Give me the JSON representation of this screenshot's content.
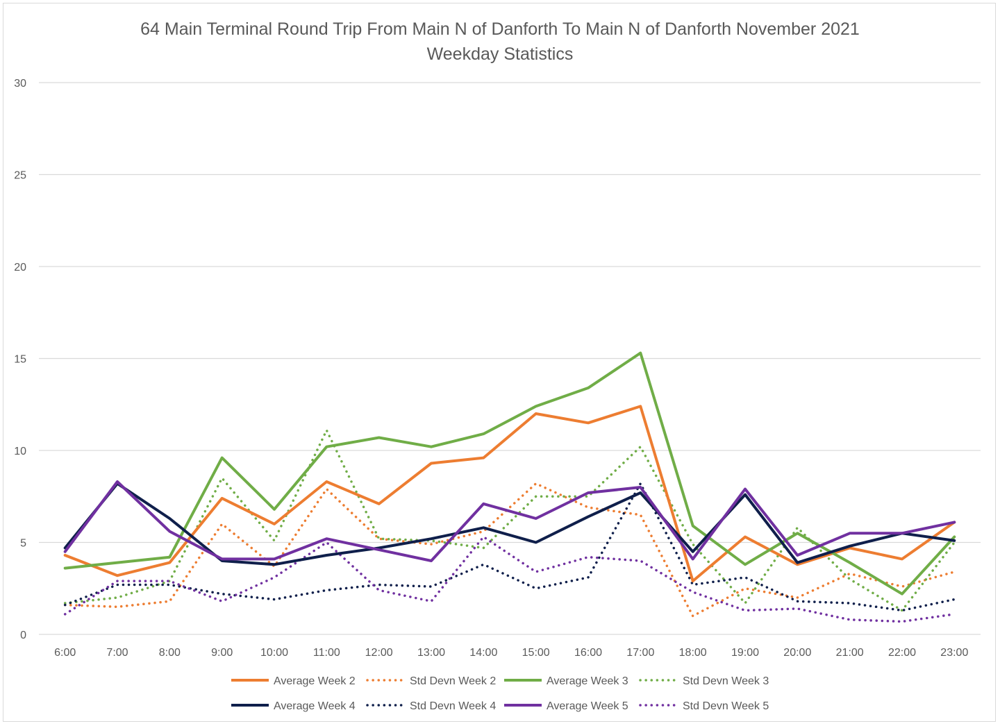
{
  "chart_data": {
    "type": "line",
    "title": "64 Main Terminal Round Trip From Main N of Danforth To Main N of Danforth November 2021",
    "subtitle": "Weekday Statistics",
    "xlabel": "",
    "ylabel": "",
    "ylim": [
      0,
      30
    ],
    "yticks": [
      0,
      5,
      10,
      15,
      20,
      25,
      30
    ],
    "grid": "horizontal",
    "legend_position": "bottom",
    "categories": [
      "6:00",
      "7:00",
      "8:00",
      "9:00",
      "10:00",
      "11:00",
      "12:00",
      "13:00",
      "14:00",
      "15:00",
      "16:00",
      "17:00",
      "18:00",
      "19:00",
      "20:00",
      "21:00",
      "22:00",
      "23:00"
    ],
    "series": [
      {
        "name": "Average Week 2",
        "color": "#ed7d31",
        "style": "solid",
        "values": [
          4.3,
          3.2,
          3.9,
          7.4,
          6.0,
          8.3,
          7.1,
          9.3,
          9.6,
          12.0,
          11.5,
          12.4,
          2.9,
          5.3,
          3.8,
          4.7,
          4.1,
          6.1
        ]
      },
      {
        "name": "Std Devn Week 2",
        "color": "#ed7d31",
        "style": "dotted",
        "values": [
          1.6,
          1.5,
          1.8,
          6.0,
          3.7,
          7.9,
          5.2,
          4.9,
          5.6,
          8.2,
          6.9,
          6.5,
          1.0,
          2.5,
          2.0,
          3.3,
          2.6,
          3.4
        ]
      },
      {
        "name": "Average Week 3",
        "color": "#70ad47",
        "style": "solid",
        "values": [
          3.6,
          3.9,
          4.2,
          9.6,
          6.8,
          10.2,
          10.7,
          10.2,
          10.9,
          12.4,
          13.4,
          15.3,
          5.9,
          3.8,
          5.5,
          3.9,
          2.2,
          5.3
        ]
      },
      {
        "name": "Std Devn Week 3",
        "color": "#70ad47",
        "style": "dotted",
        "values": [
          1.7,
          2.0,
          2.9,
          8.5,
          5.1,
          11.1,
          5.2,
          5.1,
          4.7,
          7.5,
          7.5,
          10.2,
          4.9,
          1.7,
          5.8,
          3.0,
          1.3,
          5.0
        ]
      },
      {
        "name": "Average Week 4",
        "color": "#0f1f4b",
        "style": "solid",
        "values": [
          4.7,
          8.2,
          6.3,
          4.0,
          3.8,
          4.3,
          4.7,
          5.2,
          5.8,
          5.0,
          6.4,
          7.7,
          4.5,
          7.6,
          3.9,
          4.8,
          5.5,
          5.1
        ]
      },
      {
        "name": "Std Devn Week 4",
        "color": "#0f1f4b",
        "style": "dotted",
        "values": [
          1.6,
          2.7,
          2.7,
          2.2,
          1.9,
          2.4,
          2.7,
          2.6,
          3.8,
          2.5,
          3.1,
          8.2,
          2.7,
          3.1,
          1.8,
          1.7,
          1.3,
          1.9
        ]
      },
      {
        "name": "Average Week 5",
        "color": "#7030a0",
        "style": "solid",
        "values": [
          4.5,
          8.3,
          5.6,
          4.1,
          4.1,
          5.2,
          4.6,
          4.0,
          7.1,
          6.3,
          7.7,
          8.0,
          4.1,
          7.9,
          4.3,
          5.5,
          5.5,
          6.1
        ]
      },
      {
        "name": "Std Devn Week 5",
        "color": "#7030a0",
        "style": "dotted",
        "values": [
          1.1,
          2.9,
          2.9,
          1.8,
          3.1,
          5.0,
          2.4,
          1.8,
          5.3,
          3.4,
          4.2,
          4.0,
          2.3,
          1.3,
          1.4,
          0.8,
          0.7,
          1.1
        ]
      }
    ]
  }
}
